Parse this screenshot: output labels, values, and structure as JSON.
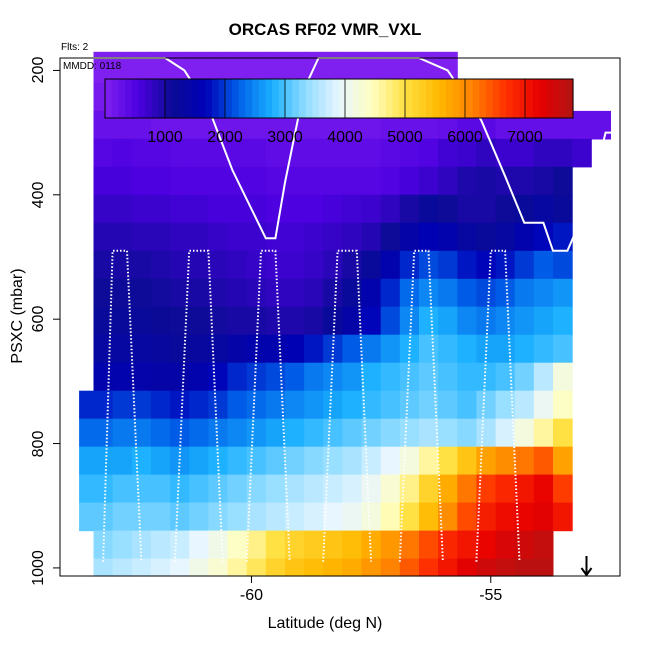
{
  "chart_data": {
    "type": "heatmap",
    "title": "ORCAS RF02 VMR_VXL",
    "flights_label": "Flts: 2",
    "date_label": "MMDD: 0118",
    "xlabel": "Latitude (deg N)",
    "ylabel": "PSXC (mbar)",
    "xlim": [
      -64.0,
      -52.3
    ],
    "ylim": [
      1013,
      180
    ],
    "x_ticks": [
      -60,
      -55
    ],
    "x_tick_labels": [
      "-60",
      "-55"
    ],
    "y_ticks": [
      200,
      400,
      600,
      800,
      1000
    ],
    "y_tick_labels": [
      "200",
      "400",
      "600",
      "800",
      "1000"
    ],
    "colorbar": {
      "range": [
        0,
        7800
      ],
      "ticks": [
        1000,
        2000,
        3000,
        4000,
        5000,
        6000,
        7000
      ],
      "tick_labels": [
        "1000",
        "2000",
        "3000",
        "4000",
        "5000",
        "6000",
        "7000"
      ],
      "colors": [
        "#7f20f0",
        "#4c00e0",
        "#0b0b95",
        "#0000b8",
        "#0060e8",
        "#1ab0ff",
        "#90dcff",
        "#e8f6ff",
        "#fffec0",
        "#ffe040",
        "#ffb800",
        "#ff8000",
        "#ff3000",
        "#e80000",
        "#b01414"
      ]
    },
    "x_edges": [
      -63.3,
      -62.9,
      -62.5,
      -62.1,
      -61.7,
      -61.3,
      -60.9,
      -60.5,
      -60.1,
      -59.7,
      -59.3,
      -58.9,
      -58.5,
      -58.1,
      -57.7,
      -57.3,
      -56.9,
      -56.5,
      -56.1,
      -55.7,
      -55.3,
      -54.9,
      -54.5,
      -54.1,
      -53.7,
      -53.3,
      -52.9,
      -52.5
    ],
    "p_edges": [
      170,
      220,
      265,
      310,
      355,
      400,
      445,
      490,
      535,
      580,
      625,
      670,
      715,
      760,
      805,
      850,
      895,
      940,
      985,
      1013
    ],
    "data_columns_note": "Cells: [x, p, value]; x/p are bin centers in data units.",
    "extents_by_layer": "layer i spans x from first to last given column",
    "layers": [
      {
        "p": 195,
        "xmin": -63.3,
        "xmax": -55.6,
        "vals": [
          0
        ]
      },
      {
        "p": 242,
        "xmin": -63.3,
        "xmax": -54.1,
        "vals": [
          0
        ]
      },
      {
        "p": 287,
        "xmin": -63.3,
        "xmax": -52.5,
        "vals": [
          0
        ]
      },
      {
        "p": 332,
        "xmin": -63.3,
        "xmax": -52.7,
        "vals": [
          0
        ]
      },
      {
        "p": 377,
        "xmin": -63.3,
        "xmax": -52.9,
        "vals": [
          0
        ]
      },
      {
        "p": 422,
        "xmin": -63.3,
        "xmax": -53.1,
        "vals": [
          0
        ]
      },
      {
        "p": 467,
        "xmin": -63.3,
        "xmax": -53.1,
        "vals": [
          0
        ]
      },
      {
        "p": 512,
        "xmin": -63.3,
        "xmax": -53.1,
        "vals": [
          0
        ]
      },
      {
        "p": 557,
        "xmin": -63.3,
        "xmax": -53.1,
        "vals": [
          0
        ]
      },
      {
        "p": 602,
        "xmin": -63.3,
        "xmax": -53.1,
        "vals": [
          0
        ]
      },
      {
        "p": 647,
        "xmin": -63.3,
        "xmax": -53.3,
        "vals": [
          0
        ]
      },
      {
        "p": 692,
        "xmin": -63.3,
        "xmax": -53.3,
        "vals": [
          0
        ]
      },
      {
        "p": 737,
        "xmin": -63.6,
        "xmax": -53.5,
        "vals": [
          0
        ]
      },
      {
        "p": 782,
        "xmin": -63.6,
        "xmax": -53.5,
        "vals": [
          0
        ]
      },
      {
        "p": 827,
        "xmin": -63.6,
        "xmax": -53.5,
        "vals": [
          0
        ]
      },
      {
        "p": 872,
        "xmin": -63.6,
        "xmax": -53.5,
        "vals": [
          0
        ]
      },
      {
        "p": 917,
        "xmin": -63.6,
        "xmax": -53.5,
        "vals": [
          0
        ]
      },
      {
        "p": 962,
        "xmin": -63.3,
        "xmax": -53.7,
        "vals": [
          0
        ]
      },
      {
        "p": 999,
        "xmin": -63.3,
        "xmax": -53.7,
        "vals": [
          0
        ]
      }
    ],
    "value_grid_note": "Approximate VMR_VXL values by layer (rows, top to bottom) and latitude column (-63.1 to -52.7 step 0.4).",
    "value_grid": [
      [
        0,
        0,
        0,
        0,
        0,
        0,
        0,
        0,
        0,
        0,
        0,
        0,
        0,
        0,
        0,
        0,
        0,
        0,
        0,
        0,
        null,
        null,
        null,
        null,
        null,
        null,
        null
      ],
      [
        100,
        100,
        100,
        100,
        100,
        100,
        100,
        100,
        100,
        100,
        100,
        100,
        100,
        100,
        100,
        100,
        100,
        100,
        150,
        200,
        250,
        300,
        300,
        null,
        null,
        null,
        null
      ],
      [
        250,
        250,
        250,
        200,
        200,
        200,
        200,
        200,
        200,
        200,
        200,
        200,
        200,
        200,
        200,
        250,
        250,
        250,
        300,
        400,
        400,
        300,
        300,
        300,
        300,
        300,
        300
      ],
      [
        450,
        500,
        450,
        450,
        400,
        400,
        400,
        400,
        400,
        350,
        350,
        350,
        350,
        350,
        350,
        400,
        450,
        500,
        650,
        700,
        800,
        700,
        700,
        800,
        800,
        700,
        null
      ],
      [
        600,
        600,
        550,
        550,
        500,
        500,
        500,
        500,
        500,
        450,
        450,
        450,
        450,
        450,
        450,
        500,
        600,
        700,
        800,
        950,
        1000,
        950,
        950,
        1000,
        1100,
        null,
        null
      ],
      [
        750,
        750,
        700,
        700,
        650,
        650,
        600,
        600,
        600,
        550,
        550,
        550,
        600,
        650,
        700,
        800,
        1000,
        1200,
        1100,
        1000,
        1000,
        1100,
        1200,
        1300,
        1200,
        null,
        null
      ],
      [
        900,
        900,
        850,
        850,
        800,
        800,
        750,
        700,
        700,
        650,
        650,
        700,
        750,
        800,
        900,
        1100,
        1400,
        1600,
        1500,
        1300,
        1200,
        1300,
        1500,
        1700,
        1800,
        null,
        null
      ],
      [
        1000,
        1000,
        1000,
        950,
        900,
        900,
        850,
        800,
        750,
        700,
        700,
        750,
        850,
        1000,
        1200,
        1500,
        1900,
        2100,
        2000,
        1800,
        1700,
        1800,
        2000,
        2200,
        2100,
        null,
        null
      ],
      [
        1100,
        1100,
        1100,
        1050,
        1000,
        1000,
        950,
        900,
        850,
        800,
        800,
        850,
        1000,
        1200,
        1500,
        1900,
        2300,
        2500,
        2400,
        2200,
        2100,
        2200,
        2400,
        2500,
        2600,
        null,
        null
      ],
      [
        1200,
        1200,
        1200,
        1150,
        1100,
        1100,
        1050,
        1000,
        1000,
        950,
        950,
        1000,
        1200,
        1400,
        1700,
        2100,
        2500,
        2800,
        2700,
        2500,
        2400,
        2500,
        2600,
        2700,
        2800,
        null,
        null
      ],
      [
        1300,
        1300,
        1300,
        1250,
        1200,
        1250,
        1300,
        1400,
        1500,
        1500,
        1600,
        1800,
        2000,
        2200,
        2400,
        2600,
        2800,
        3000,
        2900,
        2800,
        2700,
        2700,
        2800,
        2900,
        3000,
        null,
        null
      ],
      [
        1500,
        1500,
        1450,
        1400,
        1400,
        1500,
        1700,
        1900,
        2000,
        2100,
        2200,
        2400,
        2500,
        2600,
        2800,
        2900,
        3000,
        3100,
        3000,
        2900,
        2900,
        3000,
        3200,
        3600,
        4200,
        null,
        null
      ],
      [
        1900,
        2000,
        2000,
        1900,
        1800,
        1900,
        2000,
        2200,
        2300,
        2400,
        2500,
        2600,
        2700,
        2800,
        2900,
        3000,
        3100,
        3200,
        3100,
        3000,
        3200,
        3400,
        3600,
        4000,
        4400,
        null,
        null
      ],
      [
        2300,
        2400,
        2400,
        2300,
        2200,
        2300,
        2400,
        2500,
        2600,
        2700,
        2800,
        2900,
        3000,
        3100,
        3200,
        3300,
        3400,
        3500,
        3400,
        3300,
        3500,
        3800,
        4200,
        4600,
        5000,
        null,
        null
      ],
      [
        2700,
        2700,
        2800,
        2700,
        2600,
        2700,
        2800,
        2900,
        3000,
        3100,
        3200,
        3300,
        3400,
        3500,
        3700,
        3900,
        4200,
        4600,
        5000,
        5400,
        5800,
        6000,
        6200,
        6400,
        5800,
        null,
        null
      ],
      [
        2900,
        3000,
        3000,
        3000,
        2900,
        3000,
        3100,
        3200,
        3300,
        3400,
        3500,
        3600,
        3700,
        3800,
        4000,
        4300,
        4700,
        5200,
        5700,
        6200,
        6600,
        6800,
        7000,
        7200,
        6600,
        null,
        null
      ],
      [
        3100,
        3200,
        3200,
        3200,
        3100,
        3200,
        3300,
        3400,
        3500,
        3600,
        3700,
        3800,
        3900,
        4000,
        4200,
        4500,
        5000,
        5500,
        6000,
        6500,
        6900,
        7100,
        7200,
        7300,
        7000,
        null,
        null
      ],
      [
        3300,
        3400,
        3500,
        3600,
        3700,
        3900,
        4100,
        4400,
        4700,
        5000,
        5200,
        5300,
        5400,
        5500,
        5700,
        5900,
        6200,
        6500,
        6800,
        7000,
        7200,
        7400,
        7500,
        7600,
        null,
        null,
        null
      ],
      [
        3500,
        3600,
        3700,
        3800,
        3900,
        4100,
        4300,
        4600,
        4900,
        5200,
        5400,
        5500,
        5600,
        5700,
        5900,
        6100,
        6400,
        6700,
        7000,
        7300,
        7500,
        7600,
        7700,
        7700,
        null,
        null,
        null
      ]
    ],
    "flight_track": {
      "description": "Aircraft pressure vs latitude along track (white dotted line).",
      "points": [
        [
          -63.3,
          180
        ],
        [
          -61.8,
          180
        ],
        [
          -61.4,
          200
        ],
        [
          -60.9,
          260
        ],
        [
          -60.4,
          360
        ],
        [
          -59.7,
          470
        ],
        [
          -59.5,
          470
        ],
        [
          -59.3,
          380
        ],
        [
          -58.9,
          230
        ],
        [
          -58.6,
          180
        ],
        [
          -56.5,
          180
        ],
        [
          -55.9,
          200
        ],
        [
          -55.2,
          280
        ],
        [
          -54.7,
          370
        ],
        [
          -54.3,
          445
        ],
        [
          -53.9,
          445
        ],
        [
          -53.7,
          490
        ],
        [
          -53.4,
          490
        ],
        [
          -53.0,
          420
        ],
        [
          -52.6,
          300
        ],
        [
          -51.9,
          300
        ]
      ],
      "profiles": [
        [
          -63.1,
          990,
          -62.9,
          490,
          -62.6,
          490,
          -62.3,
          990
        ],
        [
          -61.6,
          990,
          -61.3,
          490,
          -60.9,
          490,
          -60.6,
          990
        ],
        [
          -60.1,
          990,
          -59.8,
          490,
          -59.5,
          490,
          -59.2,
          990
        ],
        [
          -58.5,
          990,
          -58.2,
          490,
          -57.8,
          490,
          -57.5,
          990
        ],
        [
          -56.9,
          990,
          -56.6,
          490,
          -56.3,
          490,
          -56.0,
          990
        ],
        [
          -55.3,
          990,
          -55.0,
          490,
          -54.7,
          490,
          -54.4,
          990
        ]
      ],
      "arrow_end": [
        -53.0,
        1013
      ]
    }
  }
}
